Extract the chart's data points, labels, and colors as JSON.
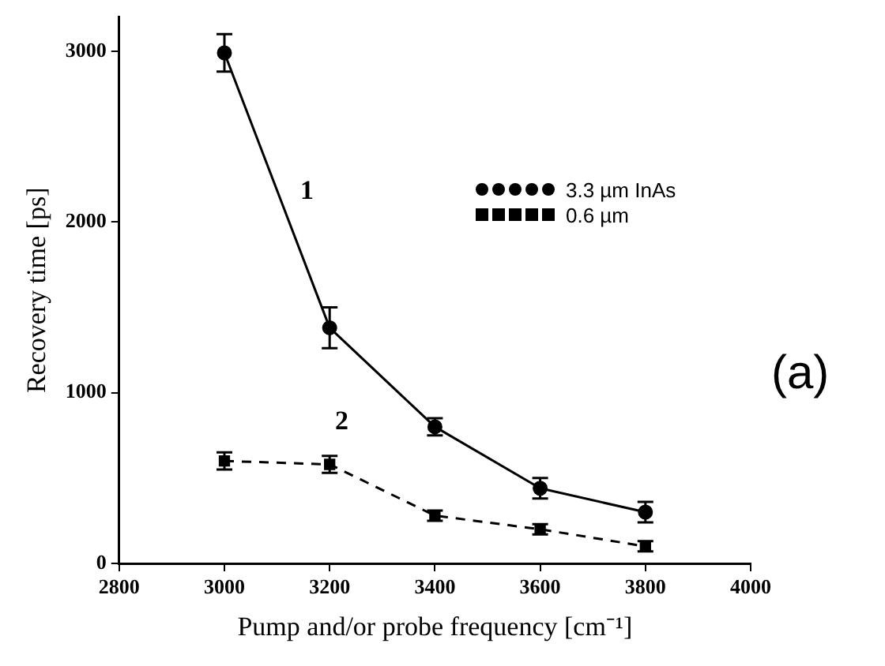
{
  "chart_data": {
    "type": "line",
    "xlabel": "Pump and/or probe frequency [cm⁻¹]",
    "ylabel": "Recovery time [ps]",
    "x": [
      3000,
      3200,
      3400,
      3600,
      3800
    ],
    "series": [
      {
        "name": "3.3 µm InAs",
        "color": "#000000",
        "values": [
          2990,
          1380,
          800,
          440,
          300
        ],
        "errors": [
          110,
          120,
          50,
          60,
          60
        ],
        "marker": "circle",
        "line_style": "solid"
      },
      {
        "name": "0.6 µm",
        "color": "#000000",
        "values": [
          600,
          580,
          280,
          200,
          100
        ],
        "errors": [
          50,
          50,
          30,
          30,
          30
        ],
        "marker": "square",
        "line_style": "dashed"
      }
    ],
    "xlim": [
      2800,
      4000
    ],
    "xticks": [
      2800,
      3000,
      3200,
      3400,
      3600,
      3800,
      4000
    ],
    "ylim": [
      0,
      3200
    ],
    "yticks": [
      0,
      1000,
      2000,
      3000
    ],
    "grid": false,
    "legend": "top right",
    "annotations": [
      "1",
      "2",
      "(a)"
    ]
  }
}
